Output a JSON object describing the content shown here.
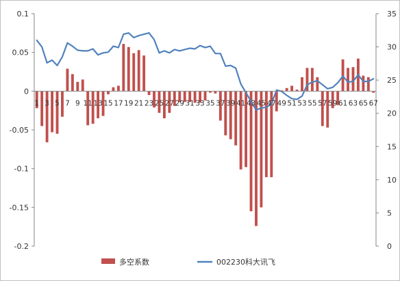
{
  "chart_data": {
    "type": "bar+line",
    "title": "",
    "x": [
      1,
      2,
      3,
      4,
      5,
      6,
      7,
      8,
      9,
      10,
      11,
      12,
      13,
      14,
      15,
      16,
      17,
      18,
      19,
      20,
      21,
      22,
      23,
      24,
      25,
      26,
      27,
      28,
      29,
      30,
      31,
      32,
      33,
      34,
      35,
      36,
      37,
      38,
      39,
      40,
      41,
      42,
      43,
      44,
      45,
      46,
      47,
      48,
      49,
      50,
      51,
      52,
      53,
      54,
      55,
      56,
      57,
      58,
      59,
      60,
      61,
      62,
      63,
      64,
      65,
      66,
      67
    ],
    "x_tick_labels": [
      "1",
      "3",
      "5",
      "7",
      "9",
      "11",
      "13",
      "15",
      "17",
      "19",
      "21",
      "23",
      "25",
      "27",
      "29",
      "31",
      "33",
      "35",
      "37",
      "39",
      "41",
      "43",
      "45",
      "47",
      "49",
      "51",
      "53",
      "55",
      "57",
      "59",
      "61",
      "63",
      "65",
      "67"
    ],
    "y_left": {
      "ylim": [
        -0.2,
        0.1
      ],
      "ticks": [
        -0.2,
        -0.15,
        -0.1,
        -0.05,
        0,
        0.05,
        0.1
      ],
      "tick_labels": [
        "-0.2",
        "-0.15",
        "-0.1",
        "-0.05",
        "0",
        "0.05",
        "0.1"
      ]
    },
    "y_right": {
      "ylim": [
        0,
        35
      ],
      "ticks": [
        0,
        5,
        10,
        15,
        20,
        25,
        30,
        35
      ],
      "tick_labels": [
        "0",
        "5",
        "10",
        "15",
        "20",
        "25",
        "30",
        "35"
      ]
    },
    "grid": false,
    "legend_placement": "bottom",
    "series": [
      {
        "name": "多空系数",
        "type": "bar",
        "axis": "left",
        "color": "#c0504d",
        "values": [
          -0.022,
          -0.045,
          -0.066,
          -0.053,
          -0.055,
          -0.033,
          0.029,
          0.022,
          0.012,
          0.015,
          -0.044,
          -0.042,
          -0.035,
          -0.032,
          -0.004,
          0.005,
          0.007,
          0.061,
          0.057,
          0.049,
          0.053,
          0.046,
          -0.005,
          -0.021,
          -0.028,
          -0.035,
          -0.028,
          -0.019,
          -0.014,
          -0.014,
          -0.014,
          -0.015,
          -0.015,
          -0.012,
          -0.002,
          -0.003,
          -0.038,
          -0.057,
          -0.062,
          -0.07,
          -0.101,
          -0.098,
          -0.155,
          -0.174,
          -0.15,
          -0.111,
          -0.111,
          -0.026,
          0.001,
          0.004,
          0.007,
          0.002,
          0.018,
          0.03,
          0.03,
          0.018,
          -0.045,
          -0.047,
          -0.022,
          -0.018,
          0.041,
          0.03,
          0.031,
          0.042,
          0.02,
          0.018,
          -0.002
        ]
      },
      {
        "name": "002230科大讯飞",
        "type": "line",
        "axis": "right",
        "color": "#4f81bd",
        "values": [
          31.0,
          30.0,
          27.6,
          28.0,
          27.2,
          28.5,
          30.6,
          30.1,
          29.5,
          29.4,
          29.4,
          29.7,
          28.8,
          29.1,
          29.2,
          30.1,
          29.9,
          31.9,
          32.1,
          31.4,
          31.7,
          31.9,
          32.1,
          31.1,
          29.1,
          29.4,
          29.1,
          29.6,
          29.4,
          29.6,
          29.8,
          29.7,
          30.2,
          29.9,
          30.1,
          29.0,
          29.0,
          27.1,
          27.2,
          26.8,
          24.4,
          23.1,
          21.8,
          20.5,
          20.8,
          20.9,
          21.4,
          23.5,
          23.3,
          22.7,
          22.2,
          22.1,
          22.6,
          24.3,
          24.7,
          24.9,
          24.3,
          23.7,
          23.9,
          24.6,
          25.6,
          24.7,
          24.8,
          25.8,
          24.8,
          24.8,
          25.2
        ]
      }
    ]
  },
  "colors": {
    "bar": "#c0504d",
    "line": "#4f81bd",
    "frame": "#bfbfbf",
    "axis": "#7f7f7f"
  }
}
